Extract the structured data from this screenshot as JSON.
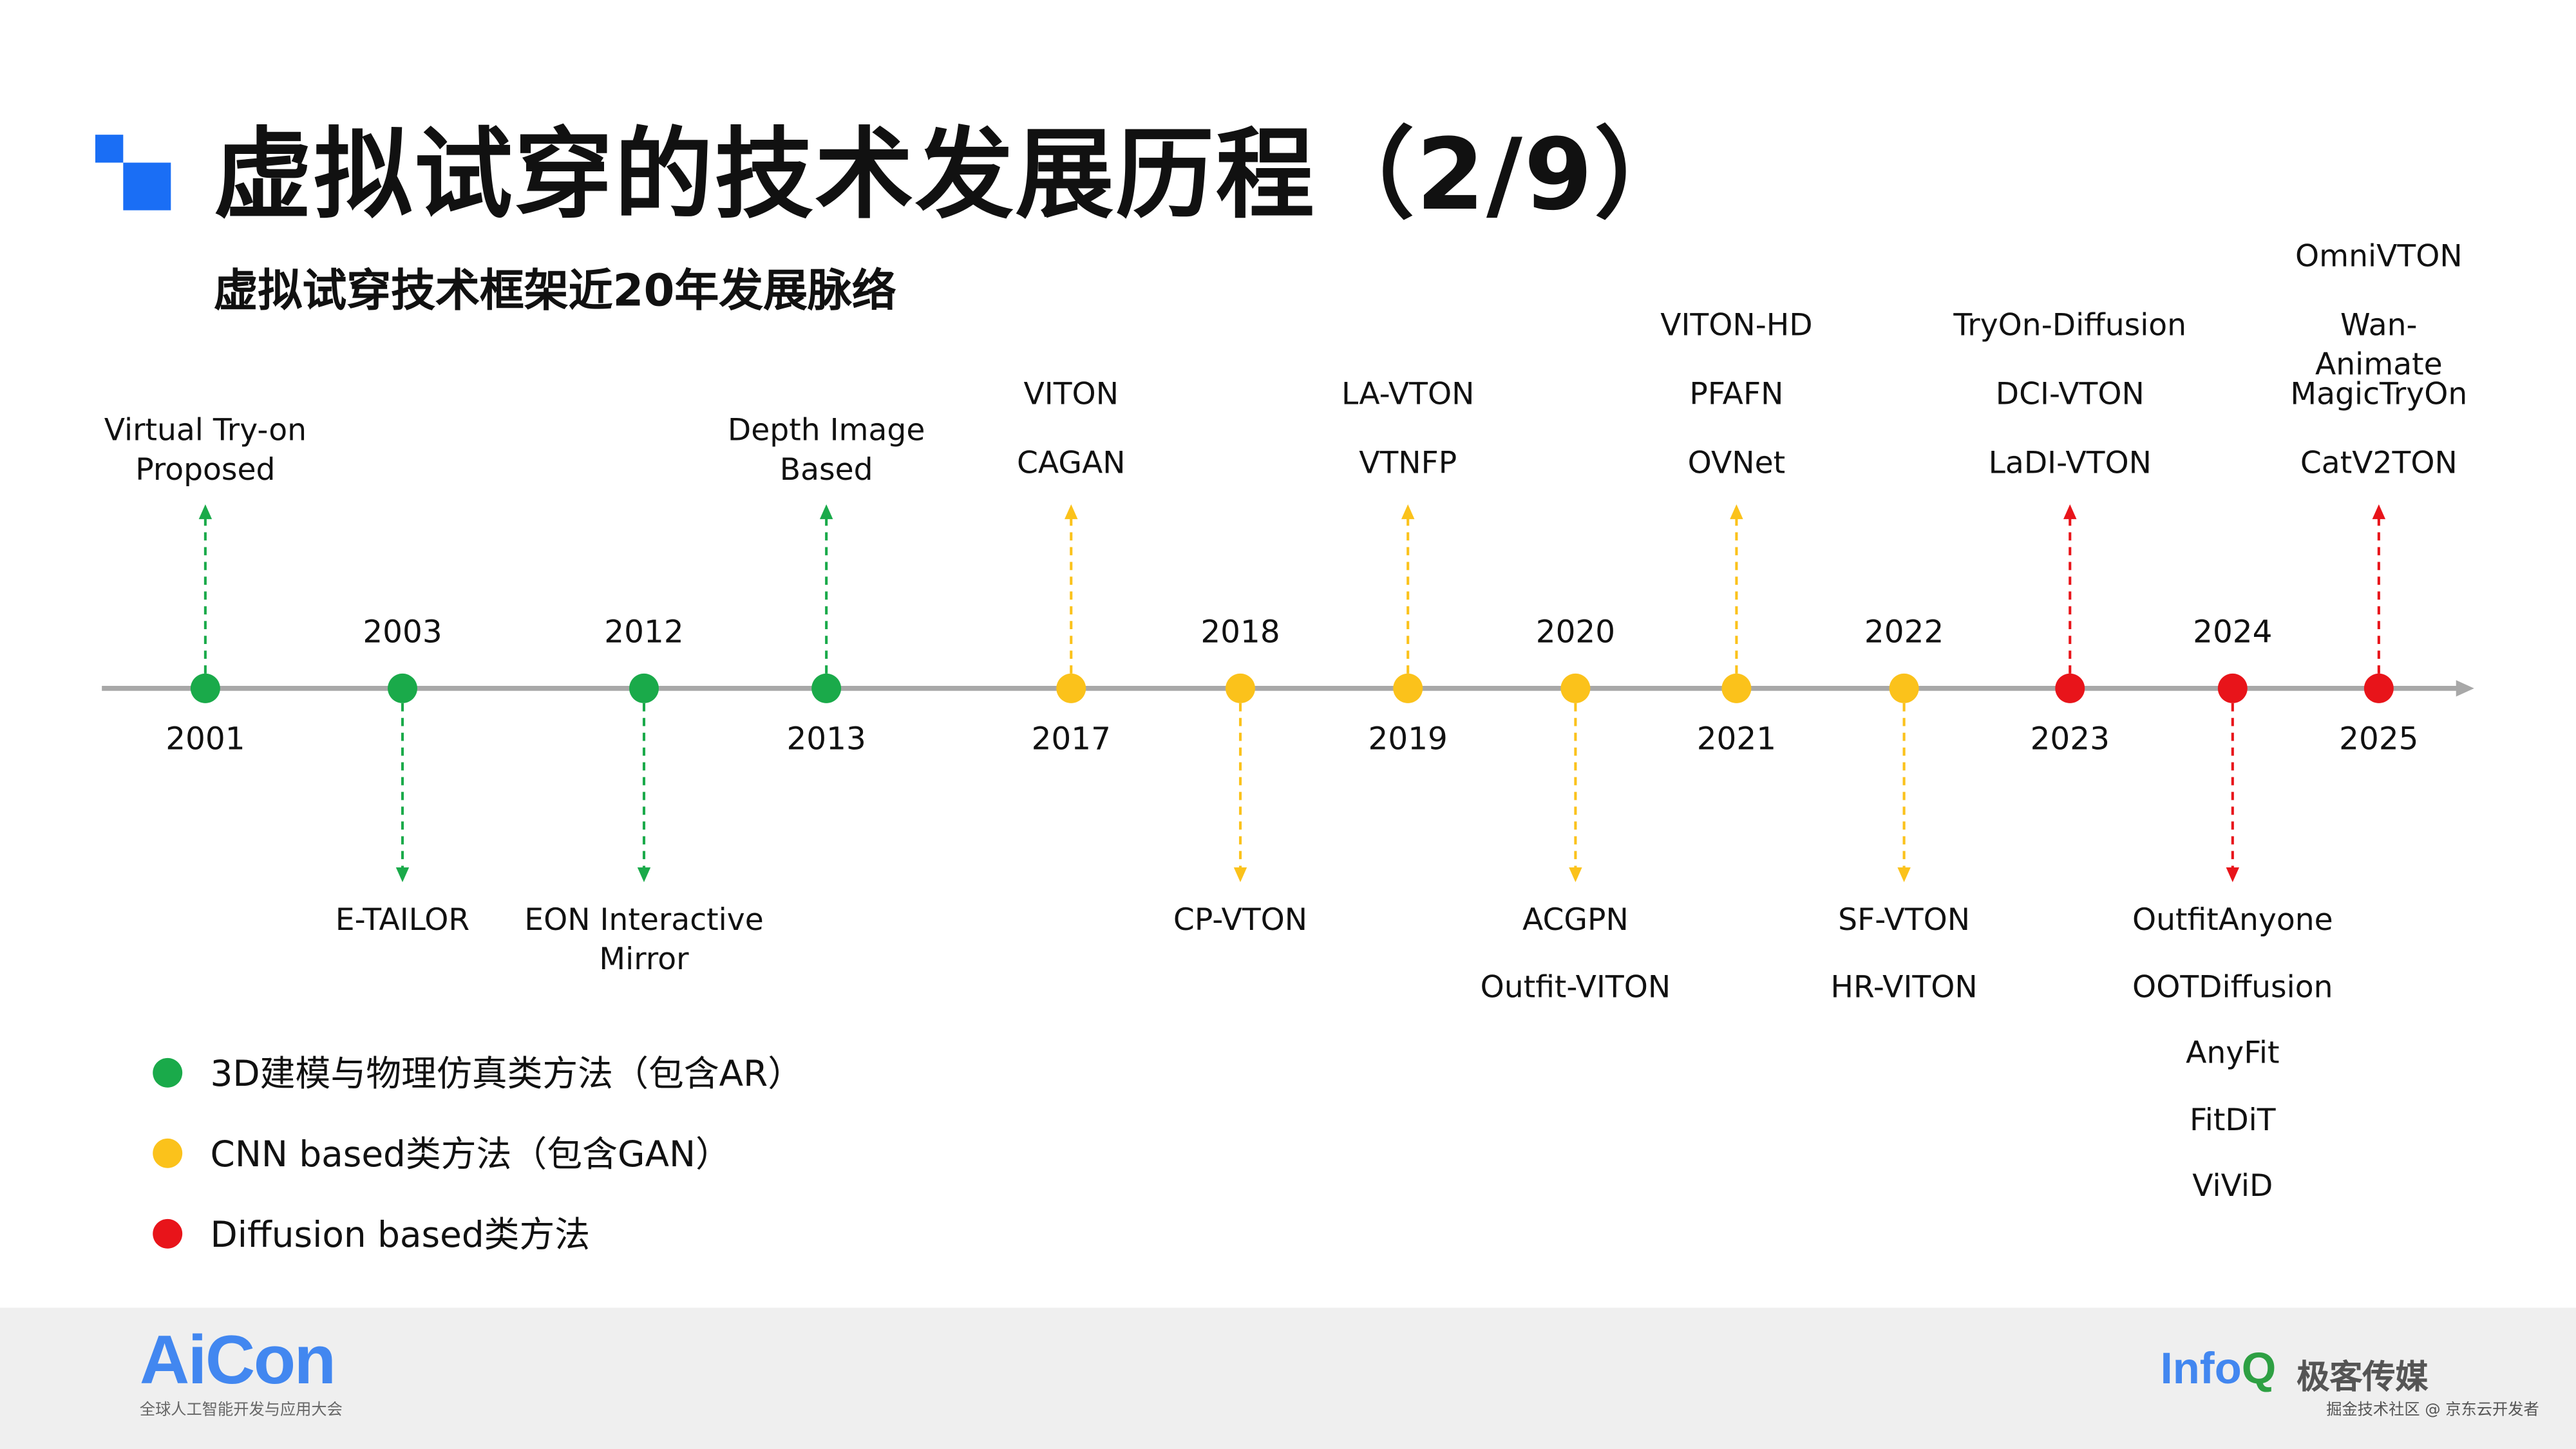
{
  "title": "虚拟试穿的技术发展历程（2/9）",
  "subtitle": "虚拟试穿技术框架近20年发展脉络",
  "colors": {
    "accent": "#1a6ef5",
    "green": "#1aaa4a",
    "yellow": "#fbc21b",
    "red": "#e8141a",
    "axis": "#a8a8a8"
  },
  "timeline": [
    {
      "year": "2001",
      "category": "green",
      "direction": "up",
      "items": [
        "Virtual Try-on\nProposed"
      ]
    },
    {
      "year": "2003",
      "category": "green",
      "direction": "down",
      "items": [
        "E-TAILOR"
      ]
    },
    {
      "year": "2012",
      "category": "green",
      "direction": "down",
      "items": [
        "EON Interactive\nMirror"
      ]
    },
    {
      "year": "2013",
      "category": "green",
      "direction": "up",
      "items": [
        "Depth Image\nBased"
      ]
    },
    {
      "year": "2017",
      "category": "yellow",
      "direction": "up",
      "items": [
        "VITON",
        "CAGAN"
      ]
    },
    {
      "year": "2018",
      "category": "yellow",
      "direction": "down",
      "items": [
        "CP-VTON"
      ]
    },
    {
      "year": "2019",
      "category": "yellow",
      "direction": "up",
      "items": [
        "LA-VTON",
        "VTNFP"
      ]
    },
    {
      "year": "2020",
      "category": "yellow",
      "direction": "down",
      "items": [
        "ACGPN",
        "Outfit-VITON"
      ]
    },
    {
      "year": "2021",
      "category": "yellow",
      "direction": "up",
      "items": [
        "VITON-HD",
        "PFAFN",
        "OVNet"
      ]
    },
    {
      "year": "2022",
      "category": "yellow",
      "direction": "down",
      "items": [
        "SF-VTON",
        "HR-VITON"
      ]
    },
    {
      "year": "2023",
      "category": "red",
      "direction": "up",
      "items": [
        "TryOn-Diffusion",
        "DCI-VTON",
        "LaDI-VTON"
      ]
    },
    {
      "year": "2024",
      "category": "red",
      "direction": "down",
      "items": [
        "OutfitAnyone",
        "OOTDiffusion",
        "AnyFit",
        "FitDiT",
        "ViViD"
      ]
    },
    {
      "year": "2025",
      "category": "red",
      "direction": "up",
      "items": [
        "OmniVTON",
        "Wan-Animate",
        "MagicTryOn",
        "CatV2TON"
      ]
    }
  ],
  "legend": [
    {
      "category": "green",
      "label": "3D建模与物理仿真类方法（包含AR）"
    },
    {
      "category": "yellow",
      "label": "CNN based类方法（包含GAN）"
    },
    {
      "category": "red",
      "label": "Diffusion based类方法"
    }
  ],
  "footer": {
    "left_logo": "AiCon",
    "left_sub": "全球人工智能开发与应用大会",
    "right_logo_a": "Info",
    "right_logo_b": "Q",
    "right_logo_cn": "极客传媒",
    "watermark": "掘金技术社区 @ 京东云开发者"
  }
}
